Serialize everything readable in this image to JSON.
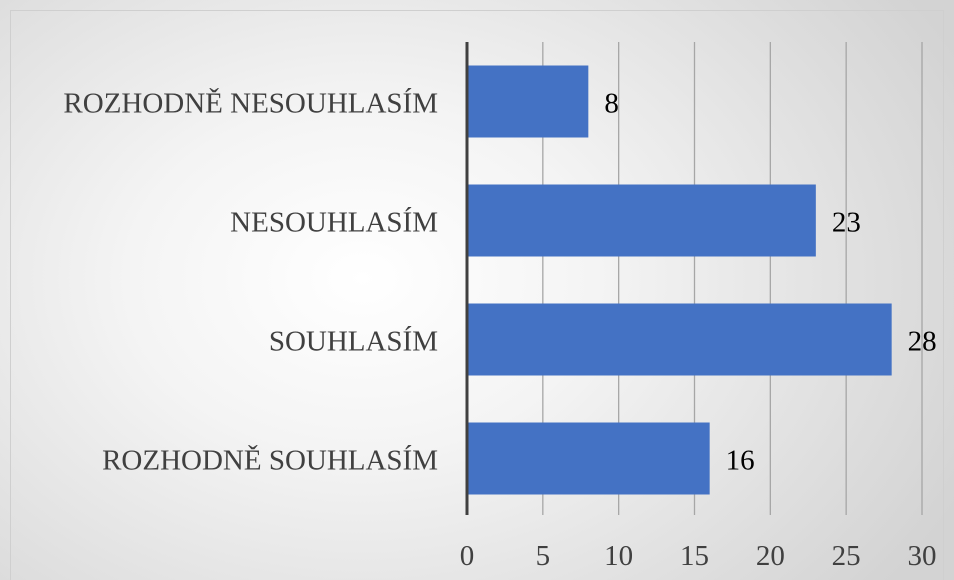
{
  "chart_data": {
    "type": "bar",
    "orientation": "horizontal",
    "categories": [
      "ROZHODNĚ NESOUHLASÍM",
      "NESOUHLASÍM",
      "SOUHLASÍM",
      "ROZHODNĚ SOUHLASÍM"
    ],
    "values": [
      8,
      23,
      28,
      16
    ],
    "xlim": [
      0,
      30
    ],
    "xticks": [
      0,
      5,
      10,
      15,
      20,
      25,
      30
    ],
    "grid": true,
    "data_labels": true,
    "title": "",
    "xlabel": "",
    "ylabel": ""
  },
  "colors": {
    "bar": "#4472c4",
    "grid": "#a6a6a6",
    "axis": "#404040",
    "text": "#404040",
    "label": "#000000"
  }
}
